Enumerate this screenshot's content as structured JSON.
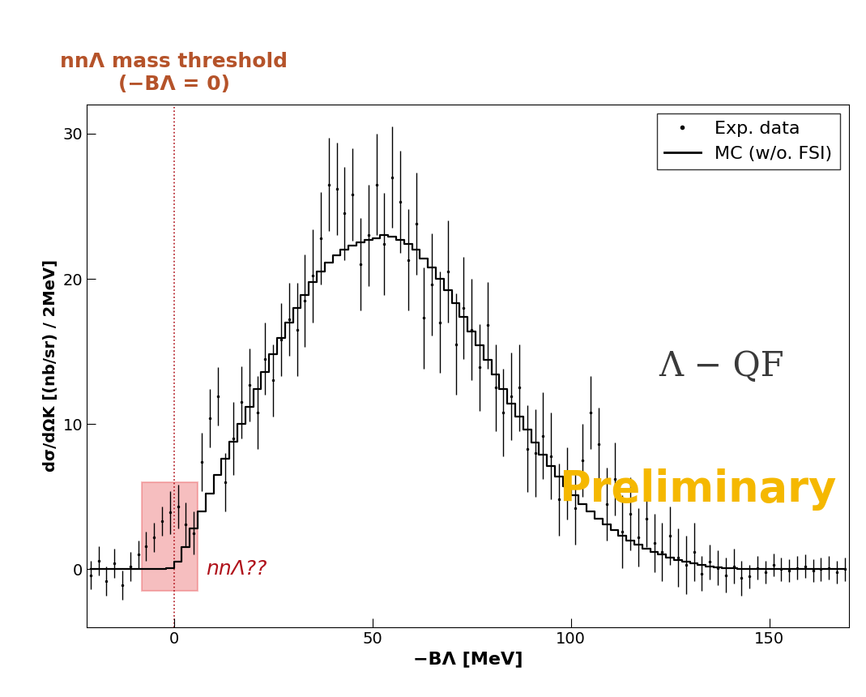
{
  "chart_data": {
    "type": "scatter",
    "x_label": "−BΛ [MeV]",
    "y_label": "dσ/dΩK [(nb/sr) / 2MeV]",
    "xlim": [
      -22,
      170
    ],
    "xticks": [
      0,
      50,
      100,
      150
    ],
    "ylim": [
      -4,
      32
    ],
    "yticks": [
      0,
      10,
      20,
      30
    ],
    "legend": "upper right",
    "x": [
      -21,
      -19,
      -17,
      -15,
      -13,
      -11,
      -9,
      -7,
      -5,
      -3,
      -1,
      1,
      3,
      5,
      7,
      9,
      11,
      13,
      15,
      17,
      19,
      21,
      23,
      25,
      27,
      29,
      31,
      33,
      35,
      37,
      39,
      41,
      43,
      45,
      47,
      49,
      51,
      53,
      55,
      57,
      59,
      61,
      63,
      65,
      67,
      69,
      71,
      73,
      75,
      77,
      79,
      81,
      83,
      85,
      87,
      89,
      91,
      93,
      95,
      97,
      99,
      101,
      103,
      105,
      107,
      109,
      111,
      113,
      115,
      117,
      119,
      121,
      123,
      125,
      127,
      129,
      131,
      133,
      135,
      137,
      139,
      141,
      143,
      145,
      147,
      149,
      151,
      153,
      155,
      157,
      159,
      161,
      163,
      165,
      167,
      169
    ],
    "series": [
      {
        "name": "Exp. data",
        "type": "errorbar",
        "color": "#000000",
        "marker": "dot",
        "values": [
          -0.4,
          0.6,
          -0.8,
          0.4,
          -1.1,
          0.2,
          1.0,
          1.6,
          2.2,
          3.3,
          3.9,
          4.3,
          3.1,
          2.5,
          7.4,
          10.4,
          11.9,
          6.0,
          9.0,
          11.5,
          12.7,
          10.8,
          14.5,
          13.0,
          15.8,
          17.2,
          16.5,
          18.5,
          20.2,
          22.8,
          26.5,
          26.2,
          24.5,
          25.8,
          21.0,
          23.0,
          26.5,
          22.4,
          27.0,
          25.3,
          21.3,
          23.8,
          17.3,
          19.6,
          17.0,
          20.5,
          15.5,
          18.0,
          16.5,
          13.9,
          16.8,
          12.5,
          10.8,
          11.9,
          12.5,
          8.3,
          8.0,
          9.2,
          7.8,
          4.8,
          5.9,
          4.2,
          7.5,
          10.8,
          8.6,
          4.5,
          6.2,
          2.6,
          3.8,
          2.2,
          3.5,
          1.8,
          1.2,
          2.3,
          0.8,
          0.3,
          1.2,
          -0.3,
          0.5,
          0.1,
          -0.4,
          0.2,
          -0.6,
          -0.5,
          0.1,
          -0.2,
          0.3,
          0.0,
          -0.1,
          0.1,
          0.2,
          -0.1,
          0.0,
          0.1,
          -0.2,
          0.0
        ],
        "errors": [
          1.0,
          1.0,
          1.0,
          1.0,
          1.0,
          1.0,
          1.0,
          1.0,
          1.0,
          1.0,
          1.5,
          1.5,
          1.5,
          1.5,
          2.0,
          2.0,
          2.0,
          2.0,
          2.5,
          2.5,
          2.5,
          2.5,
          2.5,
          2.5,
          2.5,
          2.5,
          3.2,
          3.2,
          3.2,
          3.2,
          3.2,
          3.2,
          3.2,
          3.2,
          3.2,
          3.5,
          3.5,
          3.5,
          3.5,
          3.5,
          3.5,
          3.5,
          3.5,
          3.5,
          3.5,
          3.5,
          3.5,
          3.5,
          3.5,
          3.0,
          3.0,
          3.0,
          3.0,
          3.0,
          3.0,
          3.0,
          3.0,
          3.0,
          3.0,
          2.5,
          2.5,
          2.5,
          2.5,
          2.5,
          2.5,
          2.5,
          2.5,
          2.5,
          2.5,
          2.0,
          2.0,
          2.0,
          2.0,
          2.0,
          2.0,
          2.0,
          2.0,
          1.2,
          1.2,
          1.2,
          1.2,
          1.2,
          1.2,
          0.8,
          0.8,
          0.8,
          0.8,
          0.8,
          0.8,
          0.8,
          0.8,
          0.8,
          0.8,
          0.8,
          0.8,
          0.8
        ]
      },
      {
        "name": "MC (w/o. FSI)",
        "type": "step",
        "color": "#000000",
        "line_style": "solid",
        "values": [
          0,
          0,
          0,
          0,
          0,
          0,
          0,
          0,
          0,
          0,
          0.1,
          0.5,
          1.5,
          2.8,
          4.0,
          5.2,
          6.5,
          7.6,
          8.8,
          10.0,
          11.2,
          12.4,
          13.6,
          14.8,
          15.9,
          17.0,
          18.0,
          18.9,
          19.8,
          20.5,
          21.1,
          21.6,
          22.0,
          22.3,
          22.5,
          22.7,
          22.8,
          23.0,
          22.9,
          22.7,
          22.4,
          22.0,
          21.4,
          20.8,
          20.0,
          19.2,
          18.3,
          17.4,
          16.4,
          15.4,
          14.4,
          13.4,
          12.4,
          11.4,
          10.5,
          9.6,
          8.7,
          7.9,
          7.1,
          6.4,
          5.7,
          5.1,
          4.5,
          4.0,
          3.5,
          3.1,
          2.7,
          2.3,
          2.0,
          1.7,
          1.4,
          1.2,
          1.0,
          0.8,
          0.65,
          0.5,
          0.4,
          0.3,
          0.2,
          0.15,
          0.1,
          0.05,
          0.02,
          0,
          0,
          0,
          0,
          0,
          0,
          0,
          0,
          0,
          0,
          0,
          0,
          0
        ]
      }
    ],
    "threshold": {
      "x": 0,
      "label": [
        "nnΛ mass threshold",
        "(−BΛ = 0)"
      ],
      "color": "#b5532a"
    },
    "highlight_region": {
      "x": [
        -8,
        6
      ],
      "y": [
        -1.5,
        6
      ],
      "color": "#e8474a",
      "label": "nnΛ??"
    },
    "annotations": [
      {
        "text": "Λ − QF",
        "x": 138,
        "y": 14,
        "color": "#3a3a3a"
      },
      {
        "text": "Preliminary",
        "x": 132,
        "y": 5.5,
        "color": "#f5b800"
      }
    ]
  }
}
